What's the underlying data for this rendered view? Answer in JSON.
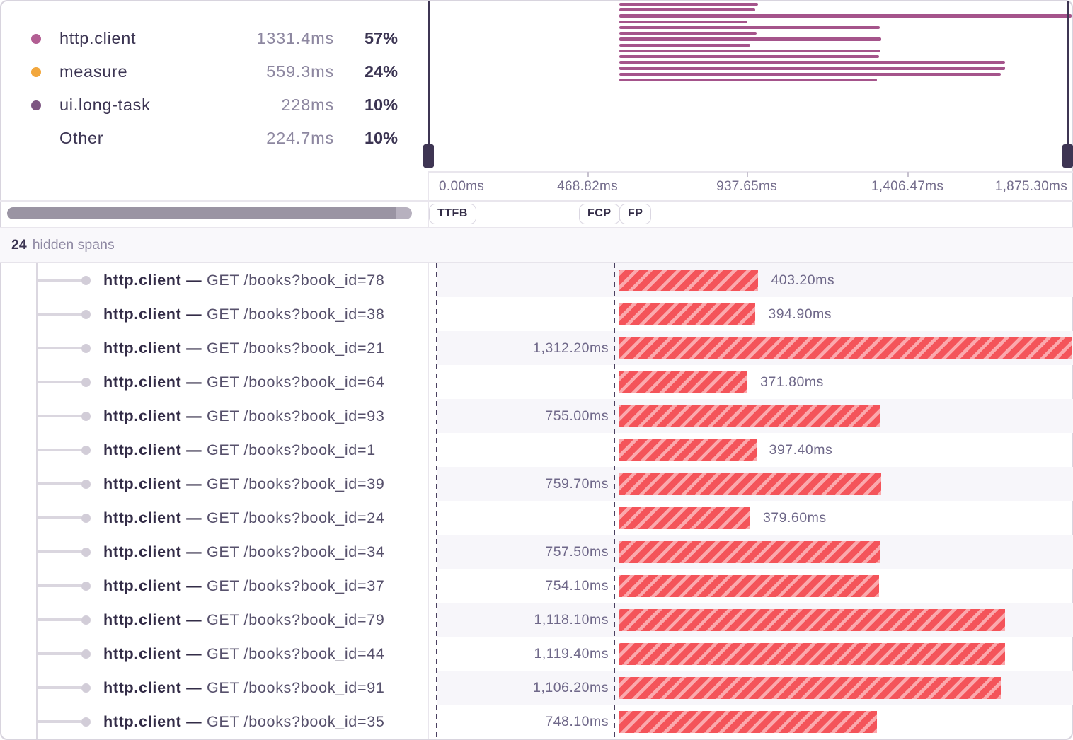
{
  "colors": {
    "bar_red": "#f4545a",
    "bar_pink": "#fba9ad",
    "minimap_line": "#a5548b",
    "http_client_dot": "#b25e93",
    "measure_dot": "#f2a73d",
    "ui_long_task_dot": "#7d5681",
    "handle": "#3e3553"
  },
  "legend": {
    "items": [
      {
        "label": "http.client",
        "color": "#b25e93",
        "value": "1331.4ms",
        "pct": "57%",
        "textured": false,
        "has_dot": true
      },
      {
        "label": "measure",
        "color": "#f2a73d",
        "value": "559.3ms",
        "pct": "24%",
        "textured": false,
        "has_dot": true
      },
      {
        "label": "ui.long-task",
        "color": "#7d5681",
        "value": "228ms",
        "pct": "10%",
        "textured": true,
        "has_dot": true
      },
      {
        "label": "Other",
        "color": null,
        "value": "224.7ms",
        "pct": "10%",
        "textured": false,
        "has_dot": false
      }
    ]
  },
  "axis": {
    "ticks": [
      "0.00ms",
      "468.82ms",
      "937.65ms",
      "1,406.47ms",
      "1,875.30ms"
    ]
  },
  "vitals": [
    "TTFB",
    "FCP",
    "FP"
  ],
  "hidden_spans": {
    "count": "24",
    "label": "hidden spans"
  },
  "spans_separator": "—",
  "spans": [
    {
      "op": "http.client",
      "desc": "GET /books?book_id=78",
      "duration_ms": 403.2,
      "duration_label": "403.20ms"
    },
    {
      "op": "http.client",
      "desc": "GET /books?book_id=38",
      "duration_ms": 394.9,
      "duration_label": "394.90ms"
    },
    {
      "op": "http.client",
      "desc": "GET /books?book_id=21",
      "duration_ms": 1312.2,
      "duration_label": "1,312.20ms"
    },
    {
      "op": "http.client",
      "desc": "GET /books?book_id=64",
      "duration_ms": 371.8,
      "duration_label": "371.80ms"
    },
    {
      "op": "http.client",
      "desc": "GET /books?book_id=93",
      "duration_ms": 755.0,
      "duration_label": "755.00ms"
    },
    {
      "op": "http.client",
      "desc": "GET /books?book_id=1",
      "duration_ms": 397.4,
      "duration_label": "397.40ms"
    },
    {
      "op": "http.client",
      "desc": "GET /books?book_id=39",
      "duration_ms": 759.7,
      "duration_label": "759.70ms"
    },
    {
      "op": "http.client",
      "desc": "GET /books?book_id=24",
      "duration_ms": 379.6,
      "duration_label": "379.60ms"
    },
    {
      "op": "http.client",
      "desc": "GET /books?book_id=34",
      "duration_ms": 757.5,
      "duration_label": "757.50ms"
    },
    {
      "op": "http.client",
      "desc": "GET /books?book_id=37",
      "duration_ms": 754.1,
      "duration_label": "754.10ms"
    },
    {
      "op": "http.client",
      "desc": "GET /books?book_id=79",
      "duration_ms": 1118.1,
      "duration_label": "1,118.10ms"
    },
    {
      "op": "http.client",
      "desc": "GET /books?book_id=44",
      "duration_ms": 1119.4,
      "duration_label": "1,119.40ms"
    },
    {
      "op": "http.client",
      "desc": "GET /books?book_id=91",
      "duration_ms": 1106.2,
      "duration_label": "1,106.20ms"
    },
    {
      "op": "http.client",
      "desc": "GET /books?book_id=35",
      "duration_ms": 748.1,
      "duration_label": "748.10ms"
    }
  ]
}
